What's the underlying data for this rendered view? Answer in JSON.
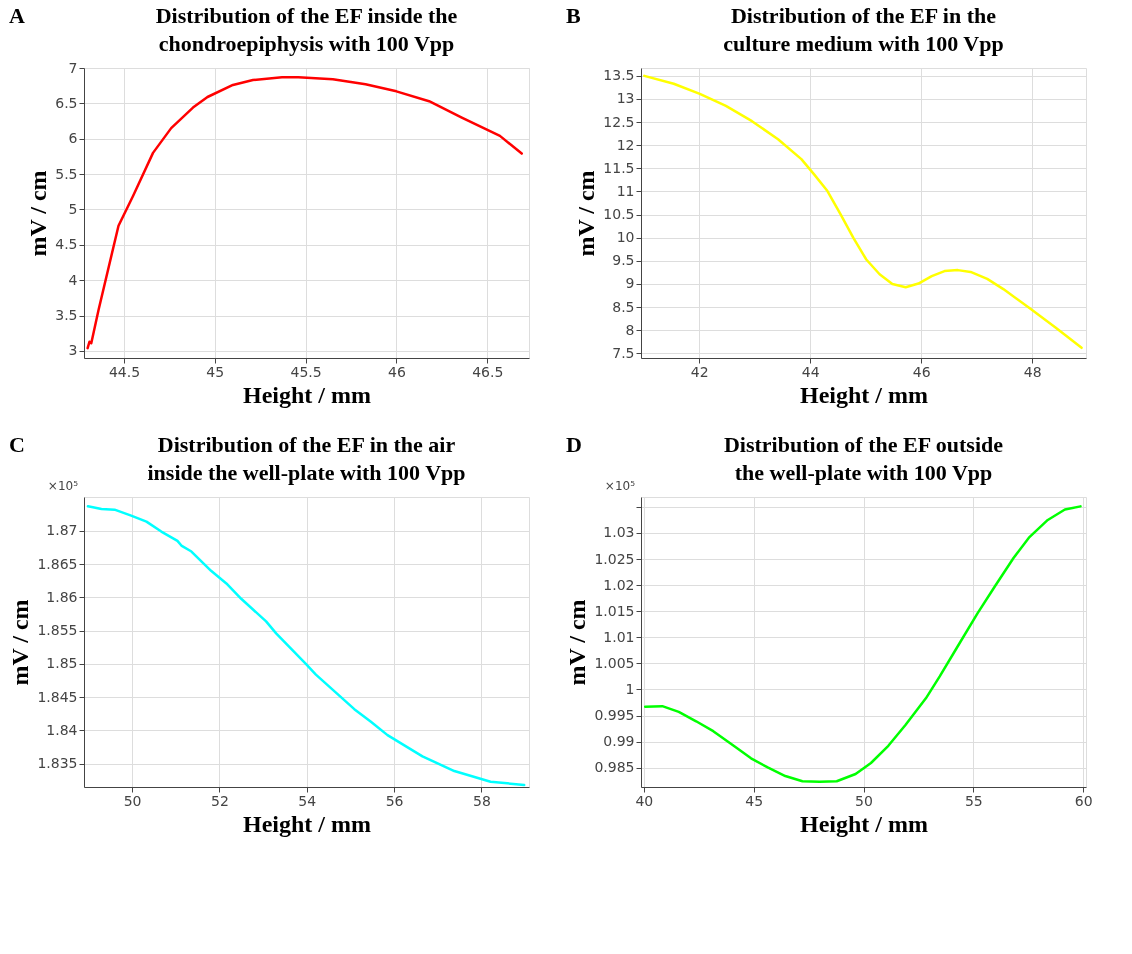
{
  "chart_data": [
    {
      "type": "line",
      "title": "Distribution of the EF inside the\nchondroepiphysis with 100 Vpp",
      "xlabel": "Height / mm",
      "ylabel": "mV / cm",
      "annotations": [
        "A"
      ],
      "grid": true,
      "xlim": [
        44.28,
        46.73
      ],
      "ylim": [
        2.9,
        7
      ],
      "xticks": [
        44.5,
        45,
        45.5,
        46,
        46.5
      ],
      "yticks": [
        3,
        3.5,
        4,
        4.5,
        5,
        5.5,
        6,
        6.5,
        7
      ],
      "series": [
        {
          "color": "#ff0000",
          "x": [
            44.3,
            44.31,
            44.32,
            44.36,
            44.47,
            44.55,
            44.66,
            44.76,
            44.88,
            44.96,
            45.1,
            45.21,
            45.37,
            45.46,
            45.65,
            45.83,
            46.0,
            46.18,
            46.36,
            46.57,
            46.69
          ],
          "values": [
            3.04,
            3.13,
            3.11,
            3.58,
            4.77,
            5.19,
            5.8,
            6.15,
            6.44,
            6.59,
            6.76,
            6.83,
            6.87,
            6.87,
            6.84,
            6.77,
            6.67,
            6.53,
            6.3,
            6.04,
            5.79
          ]
        }
      ]
    },
    {
      "type": "line",
      "title": "Distribution of the EF in the\nculture medium with 100 Vpp",
      "xlabel": "Height / mm",
      "ylabel": "mV / cm",
      "annotations": [
        "B"
      ],
      "grid": true,
      "xlim": [
        40.95,
        48.97
      ],
      "ylim": [
        7.4,
        13.67
      ],
      "xticks": [
        42,
        44,
        46,
        48
      ],
      "yticks": [
        7.5,
        8,
        8.5,
        9,
        9.5,
        10,
        10.5,
        11,
        11.5,
        12,
        12.5,
        13,
        13.5
      ],
      "series": [
        {
          "color": "#ffff00",
          "x": [
            41.01,
            41.54,
            42.01,
            42.48,
            42.95,
            43.42,
            43.84,
            44.07,
            44.31,
            44.54,
            44.78,
            45.01,
            45.25,
            45.48,
            45.72,
            45.95,
            46.19,
            46.42,
            46.66,
            46.89,
            47.19,
            47.48,
            47.95,
            48.42,
            48.89
          ],
          "values": [
            13.5,
            13.33,
            13.11,
            12.85,
            12.52,
            12.13,
            11.7,
            11.37,
            11.01,
            10.52,
            9.99,
            9.53,
            9.21,
            9.0,
            8.93,
            9.01,
            9.17,
            9.28,
            9.3,
            9.26,
            9.11,
            8.89,
            8.48,
            8.06,
            7.62
          ]
        }
      ]
    },
    {
      "type": "line",
      "title": "Distribution of the EF in the air\ninside the well-plate with 100 Vpp",
      "xlabel": "Height / mm",
      "ylabel": "mV / cm",
      "annotations": [
        "C",
        "×10⁵"
      ],
      "grid": true,
      "xlim": [
        48.9,
        59.09
      ],
      "ylim": [
        1.8315,
        1.8751
      ],
      "xticks": [
        50,
        52,
        54,
        56,
        58
      ],
      "yticks": [
        1.835,
        1.84,
        1.845,
        1.85,
        1.855,
        1.86,
        1.865,
        1.87
      ],
      "series": [
        {
          "color": "#00ffff",
          "x": [
            48.99,
            49.3,
            49.6,
            49.98,
            50.33,
            50.67,
            51.04,
            51.13,
            51.36,
            51.81,
            52.16,
            52.5,
            53.07,
            53.3,
            53.98,
            54.21,
            55.09,
            55.47,
            55.85,
            56.65,
            57.38,
            58.21,
            58.98
          ],
          "values": [
            1.8737,
            1.8733,
            1.8732,
            1.8723,
            1.8714,
            1.8699,
            1.8685,
            1.8678,
            1.8669,
            1.864,
            1.8621,
            1.8598,
            1.8564,
            1.8546,
            1.85,
            1.8484,
            1.8432,
            1.8413,
            1.8393,
            1.8361,
            1.8339,
            1.8323,
            1.8318
          ]
        }
      ]
    },
    {
      "type": "line",
      "title": "Distribution of the EF outside\nthe well-plate with 100 Vpp",
      "xlabel": "Height / mm",
      "ylabel": "mV / cm",
      "annotations": [
        "D",
        "×10⁵"
      ],
      "grid": true,
      "xlim": [
        39.87,
        60.13
      ],
      "ylim": [
        0.9813,
        1.0369
      ],
      "xticks": [
        40,
        45,
        50,
        55,
        60
      ],
      "yticks": [
        0.985,
        0.99,
        0.995,
        1,
        1.005,
        1.01,
        1.015,
        1.02,
        1.025,
        1.03,
        {
          "value": 1.035,
          "label": null
        }
      ],
      "series": [
        {
          "color": "#00ff00",
          "x": [
            40.06,
            40.84,
            41.59,
            42.38,
            43.16,
            44.09,
            44.88,
            45.66,
            46.44,
            47.22,
            48.0,
            48.78,
            49.64,
            50.34,
            51.13,
            51.91,
            52.84,
            53.47,
            54.25,
            55.19,
            55.97,
            56.83,
            57.53,
            58.39,
            59.17,
            59.88
          ],
          "values": [
            0.9967,
            0.9968,
            0.9957,
            0.9939,
            0.992,
            0.9892,
            0.9868,
            0.985,
            0.9834,
            0.9824,
            0.9823,
            0.9824,
            0.9838,
            0.9859,
            0.9892,
            0.9932,
            0.9983,
            1.0025,
            1.008,
            1.0146,
            1.0197,
            1.0252,
            1.0291,
            1.0325,
            1.0345,
            1.0351
          ]
        }
      ]
    }
  ]
}
